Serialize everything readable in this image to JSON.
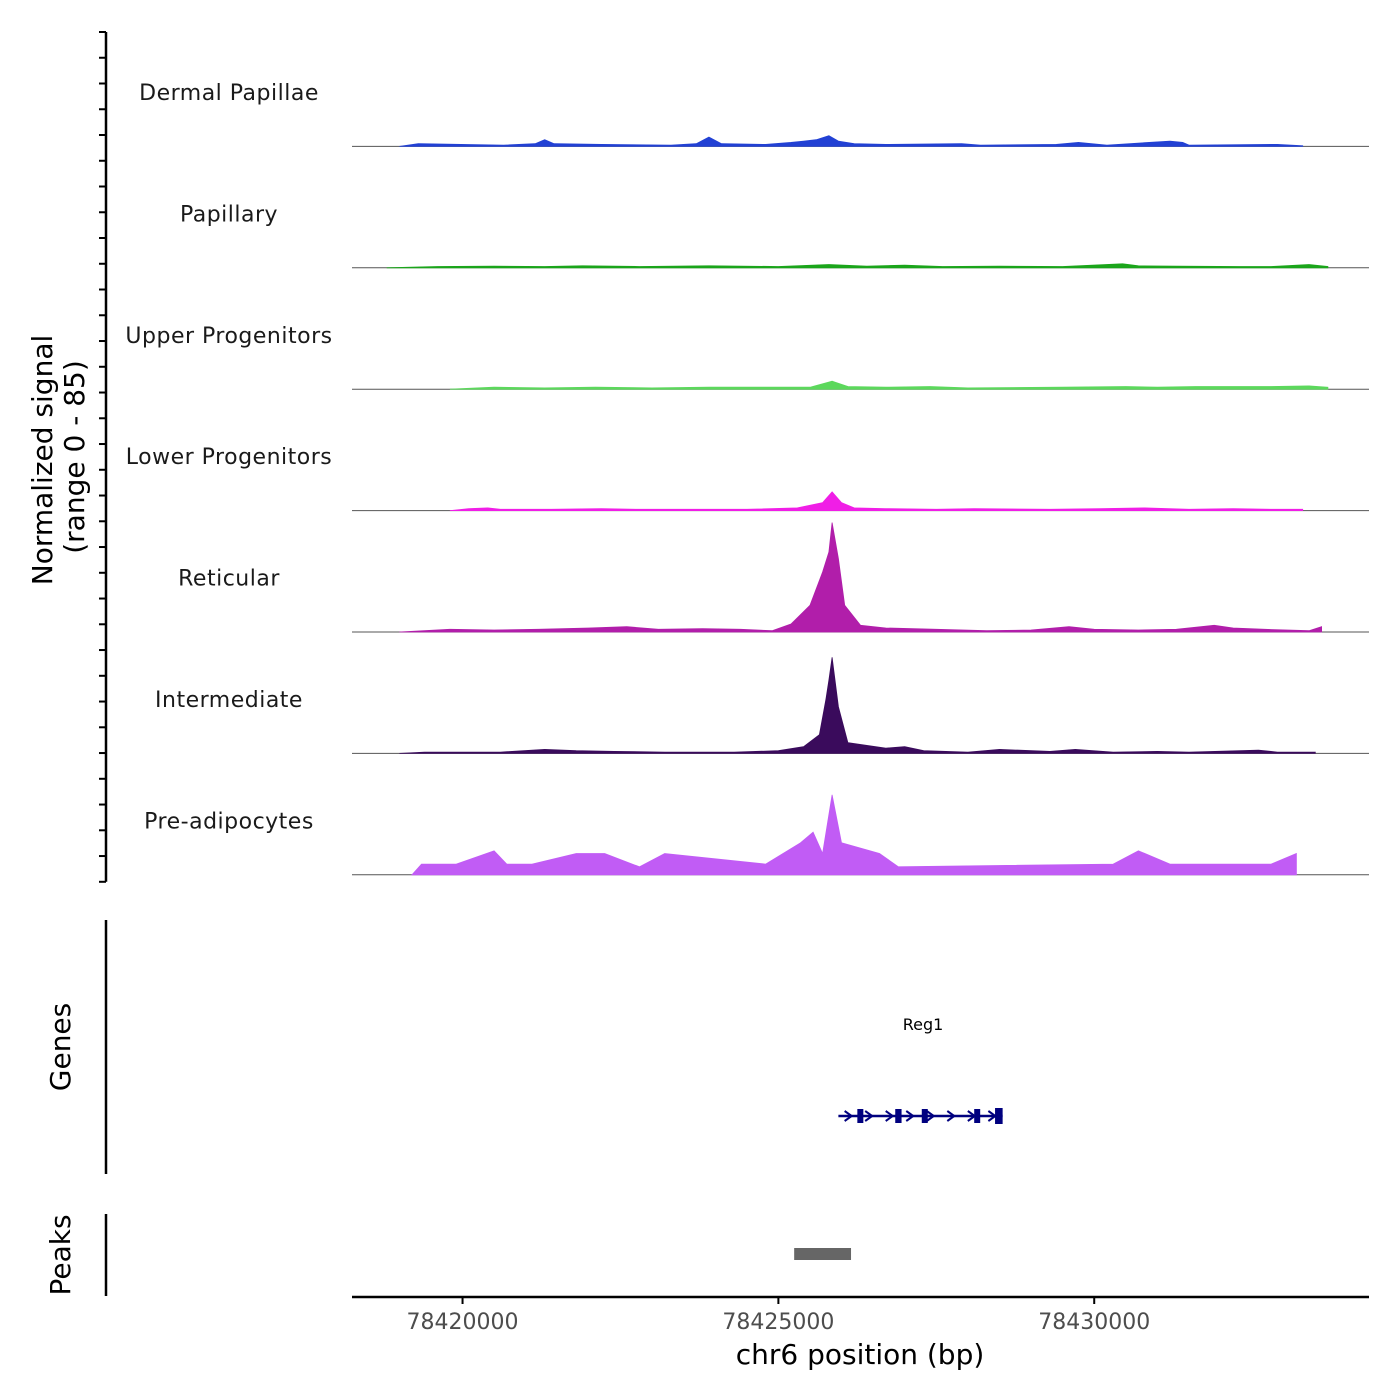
{
  "chart_data": {
    "type": "area",
    "title": "",
    "chromosome": "chr6",
    "xlabel": "chr6 position (bp)",
    "ylabel_line1": "Normalized signal",
    "ylabel_line2": "(range 0 - 85)",
    "ylim": [
      0,
      85
    ],
    "xlim": [
      78418250,
      78434350
    ],
    "x_ticks": [
      78420000,
      78425000,
      78430000
    ],
    "x_tick_labels": [
      "78420000",
      "78425000",
      "78430000"
    ],
    "tracks": [
      {
        "name": "Dermal Papillae",
        "color": "#2241d4",
        "points": [
          [
            78419000,
            0
          ],
          [
            78419300,
            2
          ],
          [
            78420650,
            1
          ],
          [
            78421150,
            2
          ],
          [
            78421300,
            5
          ],
          [
            78421450,
            2
          ],
          [
            78422200,
            1.5
          ],
          [
            78423300,
            1
          ],
          [
            78423700,
            2
          ],
          [
            78423900,
            7
          ],
          [
            78424100,
            2
          ],
          [
            78424800,
            1.5
          ],
          [
            78425200,
            3
          ],
          [
            78425400,
            4
          ],
          [
            78425600,
            5
          ],
          [
            78425800,
            8
          ],
          [
            78425950,
            4
          ],
          [
            78426200,
            2
          ],
          [
            78426700,
            1.5
          ],
          [
            78427900,
            2
          ],
          [
            78428200,
            1
          ],
          [
            78429400,
            1.5
          ],
          [
            78429750,
            3
          ],
          [
            78430200,
            1
          ],
          [
            78431200,
            4
          ],
          [
            78431400,
            3
          ],
          [
            78431500,
            1
          ],
          [
            78432900,
            1.5
          ],
          [
            78433300,
            0.5
          ]
        ]
      },
      {
        "name": "Papillary",
        "color": "#1ba51b",
        "points": [
          [
            78418800,
            0
          ],
          [
            78419600,
            1
          ],
          [
            78420500,
            1.2
          ],
          [
            78421300,
            1
          ],
          [
            78421900,
            1.5
          ],
          [
            78422800,
            1
          ],
          [
            78423900,
            1.5
          ],
          [
            78425000,
            1
          ],
          [
            78425800,
            2.5
          ],
          [
            78426400,
            1.2
          ],
          [
            78427000,
            2
          ],
          [
            78427600,
            1
          ],
          [
            78428500,
            1.2
          ],
          [
            78429500,
            1
          ],
          [
            78430450,
            3
          ],
          [
            78430700,
            1.5
          ],
          [
            78431300,
            1.2
          ],
          [
            78432300,
            1
          ],
          [
            78432800,
            1
          ],
          [
            78433400,
            2.5
          ],
          [
            78433700,
            1
          ]
        ]
      },
      {
        "name": "Upper Progenitors",
        "color": "#5cd85c",
        "points": [
          [
            78419800,
            0
          ],
          [
            78420500,
            1.5
          ],
          [
            78421300,
            1
          ],
          [
            78422100,
            1.5
          ],
          [
            78423000,
            1
          ],
          [
            78423900,
            1.5
          ],
          [
            78425500,
            1.5
          ],
          [
            78425850,
            6
          ],
          [
            78426100,
            2
          ],
          [
            78426700,
            1.5
          ],
          [
            78427400,
            2
          ],
          [
            78428000,
            1
          ],
          [
            78429500,
            1.5
          ],
          [
            78430500,
            2
          ],
          [
            78431000,
            1.5
          ],
          [
            78431600,
            2
          ],
          [
            78432800,
            2
          ],
          [
            78433400,
            2.5
          ],
          [
            78433700,
            1.5
          ]
        ]
      },
      {
        "name": "Lower Progenitors",
        "color": "#f01ee6",
        "points": [
          [
            78419800,
            0
          ],
          [
            78420100,
            1.5
          ],
          [
            78420400,
            2
          ],
          [
            78420600,
            1
          ],
          [
            78421400,
            1
          ],
          [
            78422200,
            1.5
          ],
          [
            78422800,
            1
          ],
          [
            78424500,
            1
          ],
          [
            78425300,
            2
          ],
          [
            78425700,
            6
          ],
          [
            78425850,
            14
          ],
          [
            78426000,
            6
          ],
          [
            78426200,
            2
          ],
          [
            78426700,
            1.5
          ],
          [
            78427500,
            1
          ],
          [
            78428100,
            1.5
          ],
          [
            78429300,
            1
          ],
          [
            78430100,
            1.5
          ],
          [
            78430800,
            2
          ],
          [
            78431500,
            1
          ],
          [
            78432200,
            1.5
          ],
          [
            78432800,
            1
          ],
          [
            78433300,
            1
          ]
        ]
      },
      {
        "name": "Reticular",
        "color": "#b11eaa",
        "points": [
          [
            78419000,
            0
          ],
          [
            78419800,
            2
          ],
          [
            78420500,
            1.5
          ],
          [
            78421200,
            2
          ],
          [
            78422000,
            3
          ],
          [
            78422600,
            4
          ],
          [
            78423100,
            2
          ],
          [
            78423800,
            2.5
          ],
          [
            78424400,
            2
          ],
          [
            78424900,
            1
          ],
          [
            78425200,
            6
          ],
          [
            78425500,
            20
          ],
          [
            78425700,
            45
          ],
          [
            78425800,
            60
          ],
          [
            78425850,
            82
          ],
          [
            78425950,
            55
          ],
          [
            78426050,
            20
          ],
          [
            78426300,
            5
          ],
          [
            78426700,
            3
          ],
          [
            78427500,
            2
          ],
          [
            78428300,
            1
          ],
          [
            78429000,
            1.5
          ],
          [
            78429600,
            4
          ],
          [
            78430000,
            2
          ],
          [
            78430700,
            1.5
          ],
          [
            78431300,
            2
          ],
          [
            78431900,
            5
          ],
          [
            78432200,
            3
          ],
          [
            78432700,
            2
          ],
          [
            78433400,
            1
          ],
          [
            78433600,
            4
          ]
        ]
      },
      {
        "name": "Intermediate",
        "color": "#3a0b5c",
        "points": [
          [
            78419000,
            0
          ],
          [
            78419400,
            1
          ],
          [
            78420600,
            1
          ],
          [
            78421300,
            3
          ],
          [
            78421800,
            2
          ],
          [
            78422400,
            1.5
          ],
          [
            78423200,
            1
          ],
          [
            78424300,
            1
          ],
          [
            78425000,
            2
          ],
          [
            78425400,
            5
          ],
          [
            78425650,
            14
          ],
          [
            78425750,
            40
          ],
          [
            78425800,
            55
          ],
          [
            78425850,
            72
          ],
          [
            78425950,
            35
          ],
          [
            78426100,
            8
          ],
          [
            78426700,
            4
          ],
          [
            78427000,
            5
          ],
          [
            78427300,
            2
          ],
          [
            78428000,
            1
          ],
          [
            78428500,
            3
          ],
          [
            78429300,
            1.5
          ],
          [
            78429700,
            3
          ],
          [
            78430300,
            1
          ],
          [
            78431000,
            1.5
          ],
          [
            78431500,
            1
          ],
          [
            78432600,
            2.5
          ],
          [
            78432900,
            1
          ],
          [
            78433500,
            1
          ]
        ]
      },
      {
        "name": "Pre-adipocytes",
        "color": "#c15cf5",
        "points": [
          [
            78419200,
            0
          ],
          [
            78419350,
            8
          ],
          [
            78419900,
            8
          ],
          [
            78420500,
            18
          ],
          [
            78420700,
            8
          ],
          [
            78421100,
            8
          ],
          [
            78421800,
            16
          ],
          [
            78422250,
            16
          ],
          [
            78422800,
            6
          ],
          [
            78423200,
            16
          ],
          [
            78424800,
            8
          ],
          [
            78425350,
            24
          ],
          [
            78425550,
            32
          ],
          [
            78425700,
            16
          ],
          [
            78425850,
            60
          ],
          [
            78426000,
            24
          ],
          [
            78426600,
            16
          ],
          [
            78426900,
            6
          ],
          [
            78430300,
            8
          ],
          [
            78430700,
            18
          ],
          [
            78431200,
            8
          ],
          [
            78431800,
            8
          ],
          [
            78432300,
            8
          ],
          [
            78432800,
            8
          ],
          [
            78433200,
            16
          ]
        ]
      }
    ],
    "gene": {
      "name": "Reg1",
      "start": 78425950,
      "end": 78428550,
      "strand": "+",
      "exons": [
        [
          78426250,
          78426340
        ],
        [
          78426850,
          78426950
        ],
        [
          78427270,
          78427360
        ],
        [
          78428100,
          78428190
        ],
        [
          78428430,
          78428550
        ]
      ],
      "color": "#00007f",
      "track_title": "Genes"
    },
    "peaks": {
      "track_title": "Peaks",
      "color": "#666666",
      "regions": [
        [
          78425250,
          78426150
        ]
      ]
    }
  }
}
